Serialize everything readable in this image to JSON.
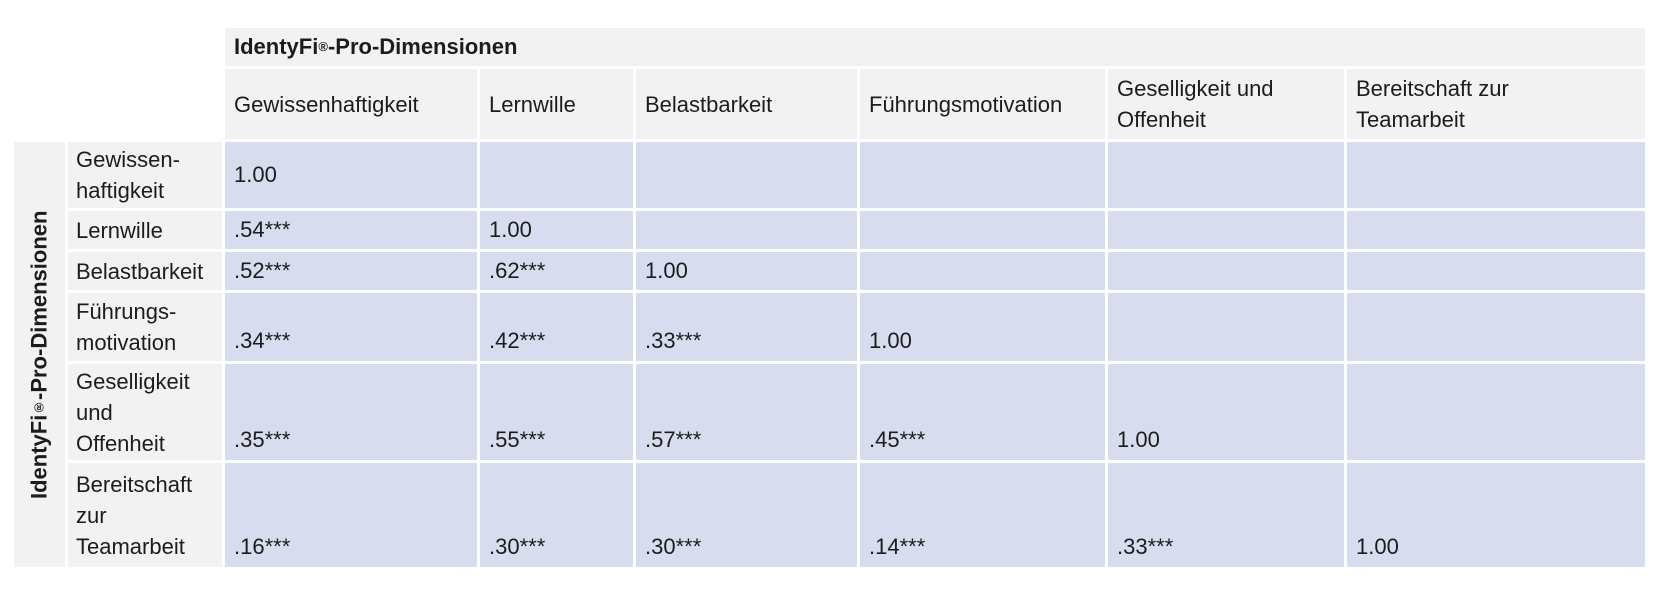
{
  "colors": {
    "header_bg": "#f2f2f2",
    "cell_bg": "#d7dcef",
    "gridline": "#ffffff",
    "text": "#1c1c1c"
  },
  "table": {
    "column_group": {
      "brand": "IdentyFi",
      "reg_mark": "®",
      "suffix": "-Pro-Dimensionen"
    },
    "row_group": {
      "brand": "IdentyFi",
      "reg_mark": "®",
      "suffix": "-Pro-Dimensionen"
    },
    "column_headers": [
      "Gewissenhaftigkeit",
      "Lernwille",
      "Belastbarkeit",
      "Führungsmotivation",
      "Geselligkeit und\nOffenheit",
      "Bereitschaft zur\nTeamarbeit"
    ],
    "row_headers": [
      "Gewissen-\nhaftigkeit",
      "Lernwille",
      "Belastbarkeit",
      "Führungs-\nmotivation",
      "Geselligkeit\nund\nOffenheit",
      "Bereitschaft\nzur\nTeamarbeit"
    ],
    "matrix": [
      [
        "1.00",
        "",
        "",
        "",
        "",
        ""
      ],
      [
        ".54***",
        "1.00",
        "",
        "",
        "",
        ""
      ],
      [
        ".52***",
        ".62***",
        "1.00",
        "",
        "",
        ""
      ],
      [
        ".34***",
        ".42***",
        ".33***",
        "1.00",
        "",
        ""
      ],
      [
        ".35***",
        ".55***",
        ".57***",
        ".45***",
        "1.00",
        ""
      ],
      [
        ".16***",
        ".30***",
        ".30***",
        ".14***",
        ".33***",
        "1.00"
      ]
    ],
    "significance_note": "***"
  }
}
